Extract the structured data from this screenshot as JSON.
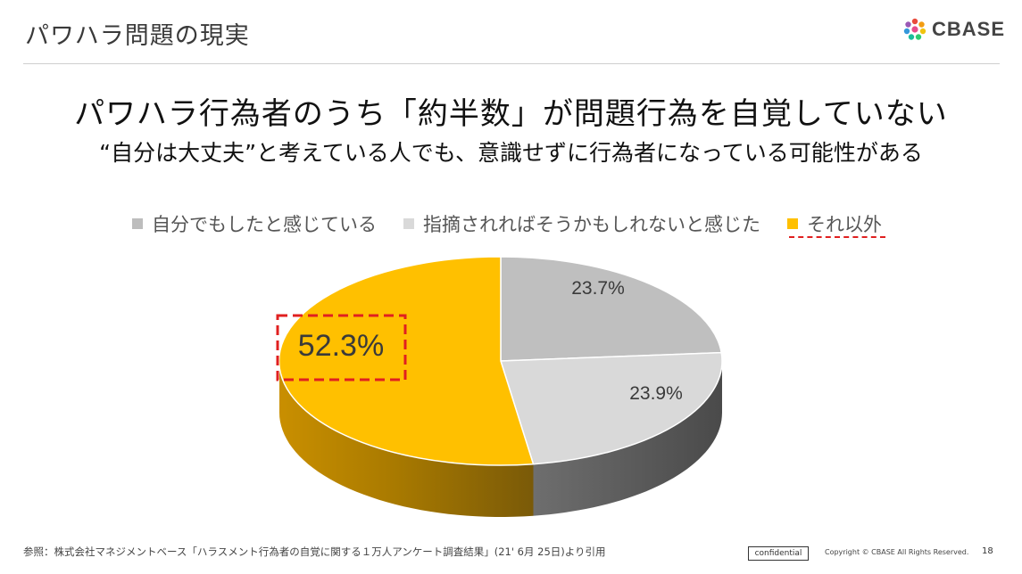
{
  "slide": {
    "title": "パワハラ問題の現実",
    "headline": "パワハラ行為者のうち「約半数」が問題行為を自覚していない",
    "subheadline": "“自分は大丈夫”と考えている人でも、意識せずに行為者になっている可能性がある"
  },
  "logo": {
    "text": "CBASE"
  },
  "chart_data": {
    "type": "pie",
    "series": [
      {
        "name": "自分でもしたと感じている",
        "value": 23.7,
        "label": "23.7%",
        "color": "#bdbdbd"
      },
      {
        "name": "指摘されればそうかもしれないと感じた",
        "value": 23.9,
        "label": "23.9%",
        "color": "#d9d9d9"
      },
      {
        "name": "それ以外",
        "value": 52.3,
        "label": "52.3%",
        "color": "#ffc000"
      }
    ],
    "legend_position": "top",
    "highlight": "それ以外"
  },
  "footer": {
    "source": "参照：株式会社マネジメントベース「ハラスメント行為者の自覚に関する１万人アンケート調査結果」(21' 6月 25日)より引用",
    "confidential": "confidential",
    "copyright": "Copyright © CBASE All Rights Reserved.",
    "page_number": "18"
  }
}
